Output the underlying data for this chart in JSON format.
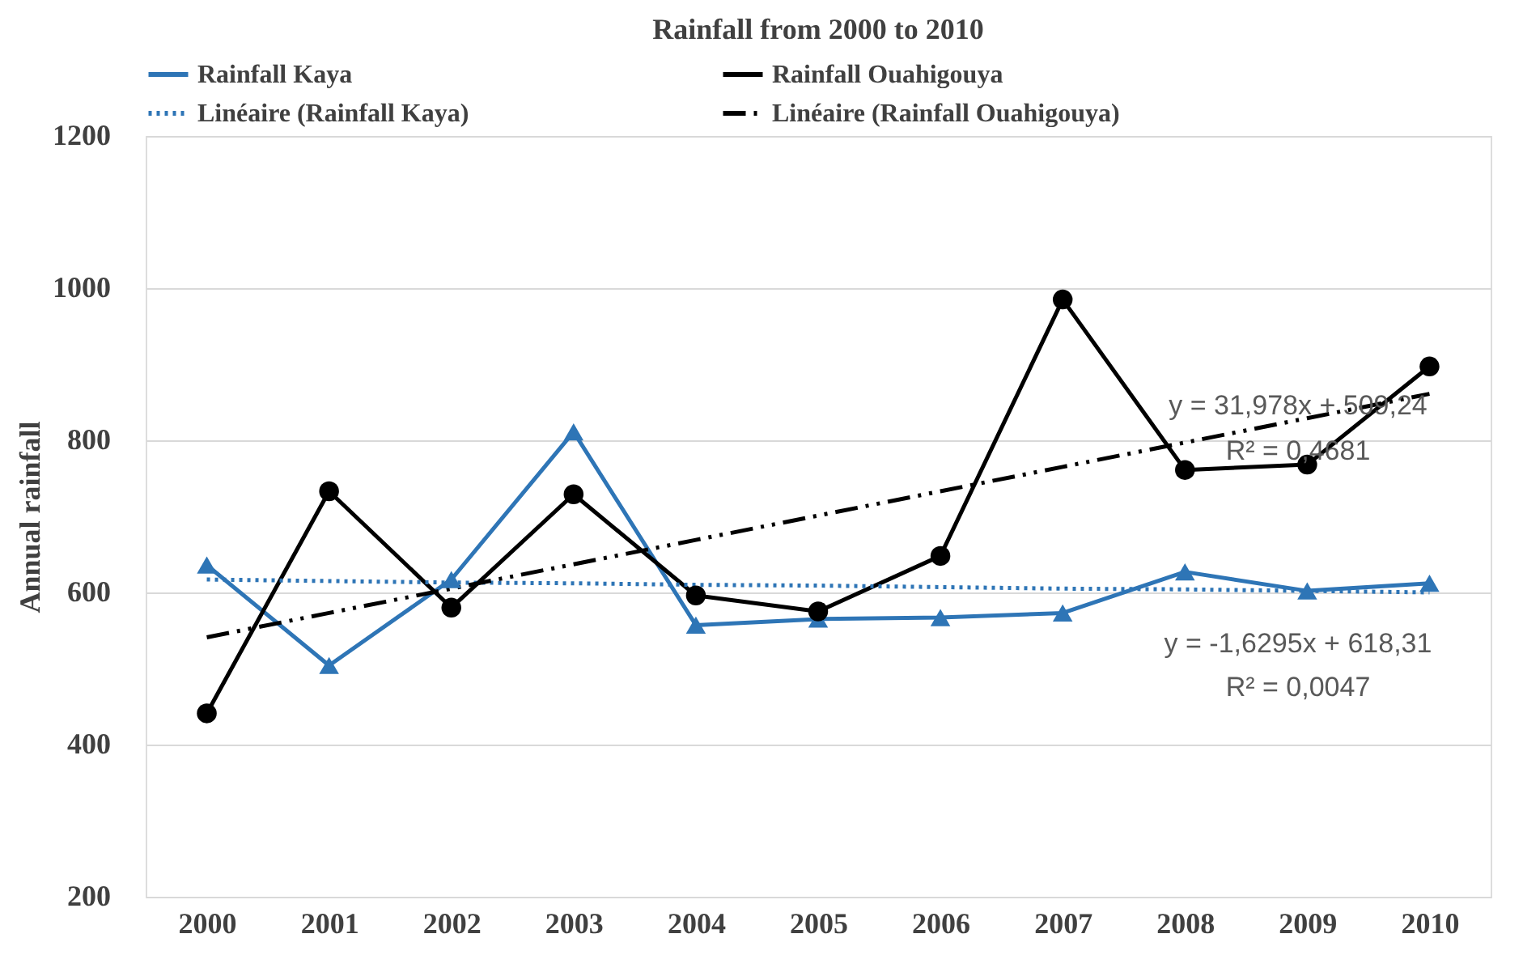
{
  "chart_data": {
    "type": "line",
    "title": "Rainfall from 2000 to 2010",
    "ylabel": "Annual rainfall",
    "categories": [
      "2000",
      "2001",
      "2002",
      "2003",
      "2004",
      "2005",
      "2006",
      "2007",
      "2008",
      "2009",
      "2010"
    ],
    "series": [
      {
        "name": "Rainfall Kaya",
        "color": "#2e75b6",
        "marker": "triangle",
        "line_style": "solid",
        "values": [
          636,
          504,
          617,
          811,
          557,
          565,
          567,
          573,
          627,
          602,
          612
        ]
      },
      {
        "name": "Rainfall Ouahigouya",
        "color": "#000000",
        "marker": "circle",
        "line_style": "solid",
        "values": [
          441,
          733,
          580,
          729,
          596,
          575,
          648,
          985,
          761,
          768,
          897
        ]
      },
      {
        "name": "Linéaire (Rainfall Kaya)",
        "color": "#2e75b6",
        "marker": "none",
        "line_style": "dotted",
        "values": [
          617,
          615,
          613,
          612,
          610,
          609,
          607,
          605,
          604,
          602,
          600
        ]
      },
      {
        "name": "Linéaire (Rainfall Ouahigouya)",
        "color": "#000000",
        "marker": "none",
        "line_style": "dashed",
        "values": [
          541,
          573,
          605,
          637,
          669,
          701,
          733,
          765,
          797,
          829,
          861
        ]
      }
    ],
    "ylim": [
      200,
      1200
    ],
    "yticks": [
      200,
      400,
      600,
      800,
      1000,
      1200
    ],
    "grid": "y",
    "legend": "top",
    "annotations": [
      "y = 31,978x + 509,24",
      "R² = 0,4681",
      "y = -1,6295x + 618,31",
      "R² = 0,0047"
    ]
  }
}
